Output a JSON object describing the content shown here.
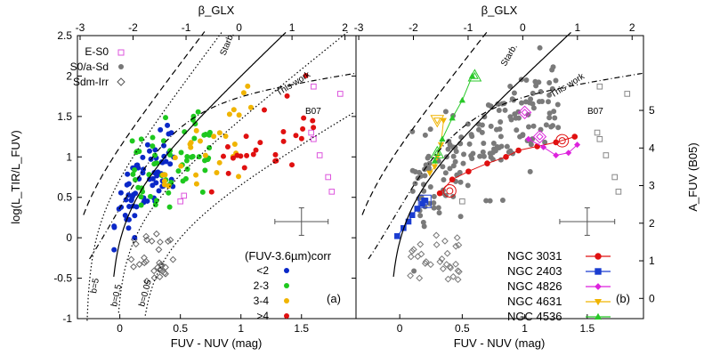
{
  "chart_data": [
    {
      "type": "scatter",
      "panel": "a",
      "panel_tag": "(a)",
      "xlabel": "FUV - NUV (mag)",
      "ylabel": "log(L_TIR/L_FUV)",
      "top_xlabel": "β_GLX",
      "xlim": [
        -0.35,
        1.95
      ],
      "ylim": [
        -1,
        2.5
      ],
      "x_ticks": [
        "0",
        "0.5",
        "1",
        "1.5"
      ],
      "x_tick_values": [
        0,
        0.5,
        1,
        1.5
      ],
      "y_ticks": [
        "-1",
        "-0.5",
        "0",
        "0.5",
        "1",
        "1.5",
        "2",
        "2.5"
      ],
      "y_tick_values": [
        -1,
        -0.5,
        0,
        0.5,
        1,
        1.5,
        2,
        2.5
      ],
      "top_ticks": [
        "-3",
        "-2",
        "-1",
        "0",
        "1",
        "2"
      ],
      "top_tick_values": [
        -3,
        -2,
        -1,
        0,
        1,
        2
      ],
      "curve_labels": [
        "Starb.",
        "This work",
        "B07",
        "b=5",
        "b=0.5",
        "b=0.05"
      ],
      "type_legend": [
        {
          "label": "E-S0",
          "marker": "open-square",
          "color": "#dd55dd"
        },
        {
          "label": "S0/a-Sd",
          "marker": "filled-circle",
          "color": "#777777"
        },
        {
          "label": "Sdm-Irr",
          "marker": "open-diamond",
          "color": "#555555"
        }
      ],
      "color_legend_title": "(FUV-3.6µm)corr",
      "color_legend": [
        {
          "label": "<2",
          "color": "#0a28c8"
        },
        {
          "label": "2-3",
          "color": "#1ec81e"
        },
        {
          "label": "3-4",
          "color": "#f0b400"
        },
        {
          "label": ">4",
          "color": "#e01010"
        }
      ],
      "error_bar": {
        "x": 1.5,
        "y": 0.2,
        "dx": 0.22,
        "dy": 0.17
      },
      "groups": [
        {
          "name": "<2",
          "color": "#0a28c8",
          "n": 70,
          "x_range": [
            -0.05,
            0.45
          ],
          "slope": 1.9,
          "intercept": 0.3,
          "scatter": 0.22
        },
        {
          "name": "2-3",
          "color": "#1ec81e",
          "n": 60,
          "x_range": [
            0.1,
            0.75
          ],
          "slope": 1.0,
          "intercept": 0.5,
          "scatter": 0.28
        },
        {
          "name": "3-4",
          "color": "#f0b400",
          "n": 30,
          "x_range": [
            0.35,
            1.1
          ],
          "slope": 0.8,
          "intercept": 0.55,
          "scatter": 0.25
        },
        {
          "name": ">4",
          "color": "#e01010",
          "n": 28,
          "x_range": [
            0.75,
            1.6
          ],
          "slope": 0.6,
          "intercept": 0.45,
          "scatter": 0.22
        }
      ],
      "open_diamonds": {
        "n": 30,
        "x_range": [
          0.05,
          0.45
        ],
        "y_range": [
          -0.55,
          0.05
        ]
      },
      "open_squares": [
        [
          0.5,
          0.45
        ],
        [
          0.53,
          0.52
        ],
        [
          1.58,
          1.3
        ],
        [
          1.6,
          1.22
        ],
        [
          1.65,
          1.02
        ],
        [
          1.72,
          0.75
        ],
        [
          1.75,
          0.57
        ],
        [
          1.6,
          1.87
        ],
        [
          1.82,
          1.78
        ]
      ]
    },
    {
      "type": "scatter",
      "panel": "b",
      "panel_tag": "(b)",
      "xlabel": "FUV - NUV (mag)",
      "ylabel": "A_FUV (B05)",
      "top_xlabel": "β_GLX",
      "xlim": [
        -0.35,
        1.95
      ],
      "ylim": [
        -1,
        2.5
      ],
      "x_ticks": [
        "0",
        "0.5",
        "1",
        "1.5"
      ],
      "x_tick_values": [
        0,
        0.5,
        1,
        1.5
      ],
      "right_ticks": [
        "0",
        "1",
        "2",
        "3",
        "4",
        "5"
      ],
      "right_tick_values": [
        0,
        1,
        2,
        3,
        4,
        5
      ],
      "top_ticks": [
        "-3",
        "-2",
        "-1",
        "0",
        "1",
        "2"
      ],
      "top_tick_values": [
        -3,
        -2,
        -1,
        0,
        1,
        2
      ],
      "curve_labels": [
        "Starb.",
        "This work",
        "B07"
      ],
      "galaxy_legend": [
        {
          "label": "NGC 3031",
          "marker": "circle",
          "color": "#e01010"
        },
        {
          "label": "NGC 2403",
          "marker": "square",
          "color": "#1a3cd0"
        },
        {
          "label": "NGC 4826",
          "marker": "diamond",
          "color": "#dd22dd"
        },
        {
          "label": "NGC 4631",
          "marker": "triangle-down",
          "color": "#f0b400"
        },
        {
          "label": "NGC 4536",
          "marker": "triangle-up",
          "color": "#28c828"
        }
      ],
      "error_bar": {
        "x": 1.5,
        "y": 0.2,
        "dx": 0.22,
        "dy": 0.17
      },
      "tracks": [
        {
          "name": "NGC 3031",
          "color": "#e01010",
          "marker": "circle",
          "points": [
            [
              0.32,
              0.55
            ],
            [
              0.42,
              0.72
            ],
            [
              0.55,
              0.82
            ],
            [
              0.7,
              0.92
            ],
            [
              0.85,
              1.0
            ],
            [
              0.95,
              1.08
            ],
            [
              1.1,
              1.13
            ],
            [
              1.25,
              1.18
            ],
            [
              1.4,
              1.25
            ]
          ],
          "highlight": [
            [
              0.4,
              0.58
            ],
            [
              1.3,
              1.2
            ]
          ]
        },
        {
          "name": "NGC 2403",
          "color": "#1a3cd0",
          "marker": "square",
          "points": [
            [
              -0.02,
              0.02
            ],
            [
              0.03,
              0.12
            ],
            [
              0.07,
              0.2
            ],
            [
              0.1,
              0.28
            ],
            [
              0.14,
              0.36
            ],
            [
              0.18,
              0.42
            ],
            [
              0.2,
              0.46
            ]
          ],
          "highlight": [
            [
              0.2,
              0.45
            ]
          ]
        },
        {
          "name": "NGC 4826",
          "color": "#dd22dd",
          "marker": "diamond",
          "points": [
            [
              1.03,
              1.22
            ],
            [
              1.15,
              1.12
            ],
            [
              1.25,
              1.02
            ],
            [
              1.35,
              1.05
            ],
            [
              1.42,
              1.15
            ]
          ],
          "highlight": [
            [
              1.0,
              1.55
            ],
            [
              1.12,
              1.25
            ]
          ]
        },
        {
          "name": "NGC 4631",
          "color": "#f0b400",
          "marker": "triangle-down",
          "points": [
            [
              0.24,
              0.8
            ],
            [
              0.28,
              0.88
            ],
            [
              0.3,
              1.0
            ],
            [
              0.33,
              1.15
            ],
            [
              0.35,
              1.45
            ]
          ],
          "highlight": [
            [
              0.3,
              1.45
            ]
          ]
        },
        {
          "name": "NGC 4536",
          "color": "#28c828",
          "marker": "triangle-up",
          "points": [
            [
              0.28,
              0.95
            ],
            [
              0.34,
              1.22
            ],
            [
              0.42,
              1.48
            ],
            [
              0.5,
              1.7
            ],
            [
              0.58,
              2.0
            ]
          ],
          "highlight": [
            [
              0.3,
              1.05
            ],
            [
              0.6,
              2.0
            ]
          ]
        }
      ],
      "grey_cloud": {
        "n": 170,
        "x_range": [
          0.1,
          1.3
        ],
        "slope": 1.0,
        "intercept": 0.45,
        "scatter": 0.28
      },
      "open_diamonds": {
        "n": 30,
        "x_range": [
          0.05,
          0.5
        ],
        "y_range": [
          -0.55,
          0.05
        ]
      },
      "open_squares": [
        [
          0.5,
          0.45
        ],
        [
          1.58,
          1.3
        ],
        [
          1.6,
          1.22
        ],
        [
          1.65,
          1.02
        ],
        [
          1.72,
          0.75
        ],
        [
          1.75,
          0.57
        ],
        [
          1.6,
          1.87
        ],
        [
          1.82,
          1.78
        ]
      ]
    }
  ]
}
